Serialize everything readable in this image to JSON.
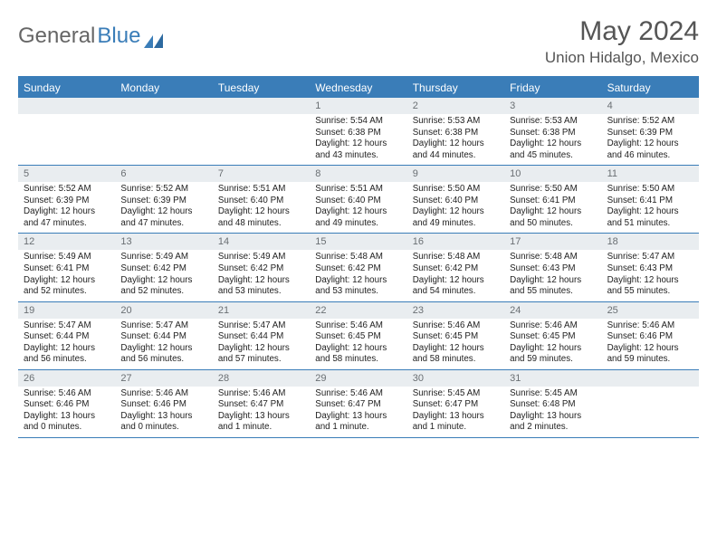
{
  "brand": {
    "part1": "General",
    "part2": "Blue"
  },
  "title": "May 2024",
  "location": "Union Hidalgo, Mexico",
  "colors": {
    "header_bg": "#3a7db8",
    "daynum_bg": "#e9edf0",
    "text": "#333333",
    "muted": "#6a6f73"
  },
  "day_labels": [
    "Sunday",
    "Monday",
    "Tuesday",
    "Wednesday",
    "Thursday",
    "Friday",
    "Saturday"
  ],
  "weeks": [
    [
      null,
      null,
      null,
      {
        "n": "1",
        "sr": "5:54 AM",
        "ss": "6:38 PM",
        "dl": "12 hours and 43 minutes."
      },
      {
        "n": "2",
        "sr": "5:53 AM",
        "ss": "6:38 PM",
        "dl": "12 hours and 44 minutes."
      },
      {
        "n": "3",
        "sr": "5:53 AM",
        "ss": "6:38 PM",
        "dl": "12 hours and 45 minutes."
      },
      {
        "n": "4",
        "sr": "5:52 AM",
        "ss": "6:39 PM",
        "dl": "12 hours and 46 minutes."
      }
    ],
    [
      {
        "n": "5",
        "sr": "5:52 AM",
        "ss": "6:39 PM",
        "dl": "12 hours and 47 minutes."
      },
      {
        "n": "6",
        "sr": "5:52 AM",
        "ss": "6:39 PM",
        "dl": "12 hours and 47 minutes."
      },
      {
        "n": "7",
        "sr": "5:51 AM",
        "ss": "6:40 PM",
        "dl": "12 hours and 48 minutes."
      },
      {
        "n": "8",
        "sr": "5:51 AM",
        "ss": "6:40 PM",
        "dl": "12 hours and 49 minutes."
      },
      {
        "n": "9",
        "sr": "5:50 AM",
        "ss": "6:40 PM",
        "dl": "12 hours and 49 minutes."
      },
      {
        "n": "10",
        "sr": "5:50 AM",
        "ss": "6:41 PM",
        "dl": "12 hours and 50 minutes."
      },
      {
        "n": "11",
        "sr": "5:50 AM",
        "ss": "6:41 PM",
        "dl": "12 hours and 51 minutes."
      }
    ],
    [
      {
        "n": "12",
        "sr": "5:49 AM",
        "ss": "6:41 PM",
        "dl": "12 hours and 52 minutes."
      },
      {
        "n": "13",
        "sr": "5:49 AM",
        "ss": "6:42 PM",
        "dl": "12 hours and 52 minutes."
      },
      {
        "n": "14",
        "sr": "5:49 AM",
        "ss": "6:42 PM",
        "dl": "12 hours and 53 minutes."
      },
      {
        "n": "15",
        "sr": "5:48 AM",
        "ss": "6:42 PM",
        "dl": "12 hours and 53 minutes."
      },
      {
        "n": "16",
        "sr": "5:48 AM",
        "ss": "6:42 PM",
        "dl": "12 hours and 54 minutes."
      },
      {
        "n": "17",
        "sr": "5:48 AM",
        "ss": "6:43 PM",
        "dl": "12 hours and 55 minutes."
      },
      {
        "n": "18",
        "sr": "5:47 AM",
        "ss": "6:43 PM",
        "dl": "12 hours and 55 minutes."
      }
    ],
    [
      {
        "n": "19",
        "sr": "5:47 AM",
        "ss": "6:44 PM",
        "dl": "12 hours and 56 minutes."
      },
      {
        "n": "20",
        "sr": "5:47 AM",
        "ss": "6:44 PM",
        "dl": "12 hours and 56 minutes."
      },
      {
        "n": "21",
        "sr": "5:47 AM",
        "ss": "6:44 PM",
        "dl": "12 hours and 57 minutes."
      },
      {
        "n": "22",
        "sr": "5:46 AM",
        "ss": "6:45 PM",
        "dl": "12 hours and 58 minutes."
      },
      {
        "n": "23",
        "sr": "5:46 AM",
        "ss": "6:45 PM",
        "dl": "12 hours and 58 minutes."
      },
      {
        "n": "24",
        "sr": "5:46 AM",
        "ss": "6:45 PM",
        "dl": "12 hours and 59 minutes."
      },
      {
        "n": "25",
        "sr": "5:46 AM",
        "ss": "6:46 PM",
        "dl": "12 hours and 59 minutes."
      }
    ],
    [
      {
        "n": "26",
        "sr": "5:46 AM",
        "ss": "6:46 PM",
        "dl": "13 hours and 0 minutes."
      },
      {
        "n": "27",
        "sr": "5:46 AM",
        "ss": "6:46 PM",
        "dl": "13 hours and 0 minutes."
      },
      {
        "n": "28",
        "sr": "5:46 AM",
        "ss": "6:47 PM",
        "dl": "13 hours and 1 minute."
      },
      {
        "n": "29",
        "sr": "5:46 AM",
        "ss": "6:47 PM",
        "dl": "13 hours and 1 minute."
      },
      {
        "n": "30",
        "sr": "5:45 AM",
        "ss": "6:47 PM",
        "dl": "13 hours and 1 minute."
      },
      {
        "n": "31",
        "sr": "5:45 AM",
        "ss": "6:48 PM",
        "dl": "13 hours and 2 minutes."
      },
      null
    ]
  ],
  "labels": {
    "sunrise": "Sunrise:",
    "sunset": "Sunset:",
    "daylight": "Daylight:"
  }
}
